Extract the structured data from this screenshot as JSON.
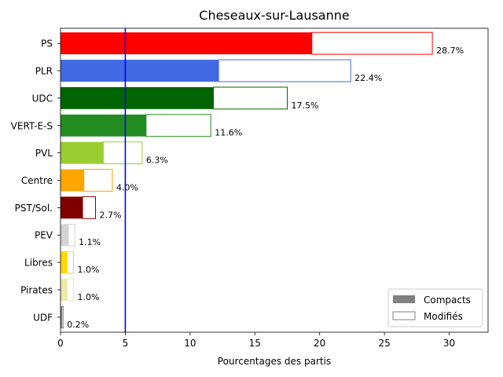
{
  "chart_data": {
    "type": "bar",
    "orientation": "horizontal",
    "title": "Cheseaux-sur-Lausanne",
    "xlabel": "Pourcentages des partis",
    "ylabel": "",
    "xlim": [
      0,
      33
    ],
    "xticks": [
      0,
      5,
      10,
      15,
      20,
      25,
      30
    ],
    "threshold_line": {
      "x": 5,
      "color": "#0000ff"
    },
    "legend": {
      "placement": "bottom-right",
      "entries": [
        {
          "label": "Compacts",
          "style": "filled",
          "color": "#808080"
        },
        {
          "label": "Modifiés",
          "style": "outline",
          "color": "#808080"
        }
      ]
    },
    "categories": [
      "PS",
      "PLR",
      "UDC",
      "VERT-E-S",
      "PVL",
      "Centre",
      "PST/Sol.",
      "PEV",
      "Libres",
      "Pirates",
      "UDF"
    ],
    "series": [
      {
        "name": "Compacts",
        "values": [
          19.4,
          12.2,
          11.8,
          6.6,
          3.3,
          1.8,
          1.7,
          0.6,
          0.5,
          0.5,
          0.1
        ]
      },
      {
        "name": "Modifiés",
        "values": [
          9.3,
          10.2,
          5.7,
          5.0,
          3.0,
          2.2,
          1.0,
          0.5,
          0.5,
          0.5,
          0.1
        ]
      }
    ],
    "totals": [
      28.7,
      22.4,
      17.5,
      11.6,
      6.3,
      4.0,
      2.7,
      1.1,
      1.0,
      1.0,
      0.2
    ],
    "total_labels": [
      "28.7%",
      "22.4%",
      "17.5%",
      "11.6%",
      "6.3%",
      "4.0%",
      "2.7%",
      "1.1%",
      "1.0%",
      "1.0%",
      "0.2%"
    ],
    "colors": [
      "#ff0000",
      "#4169e1",
      "#006400",
      "#228b22",
      "#9acd32",
      "#ffa500",
      "#800000",
      "#d3d3d3",
      "#ffd700",
      "#eee8aa",
      "#808080"
    ]
  }
}
